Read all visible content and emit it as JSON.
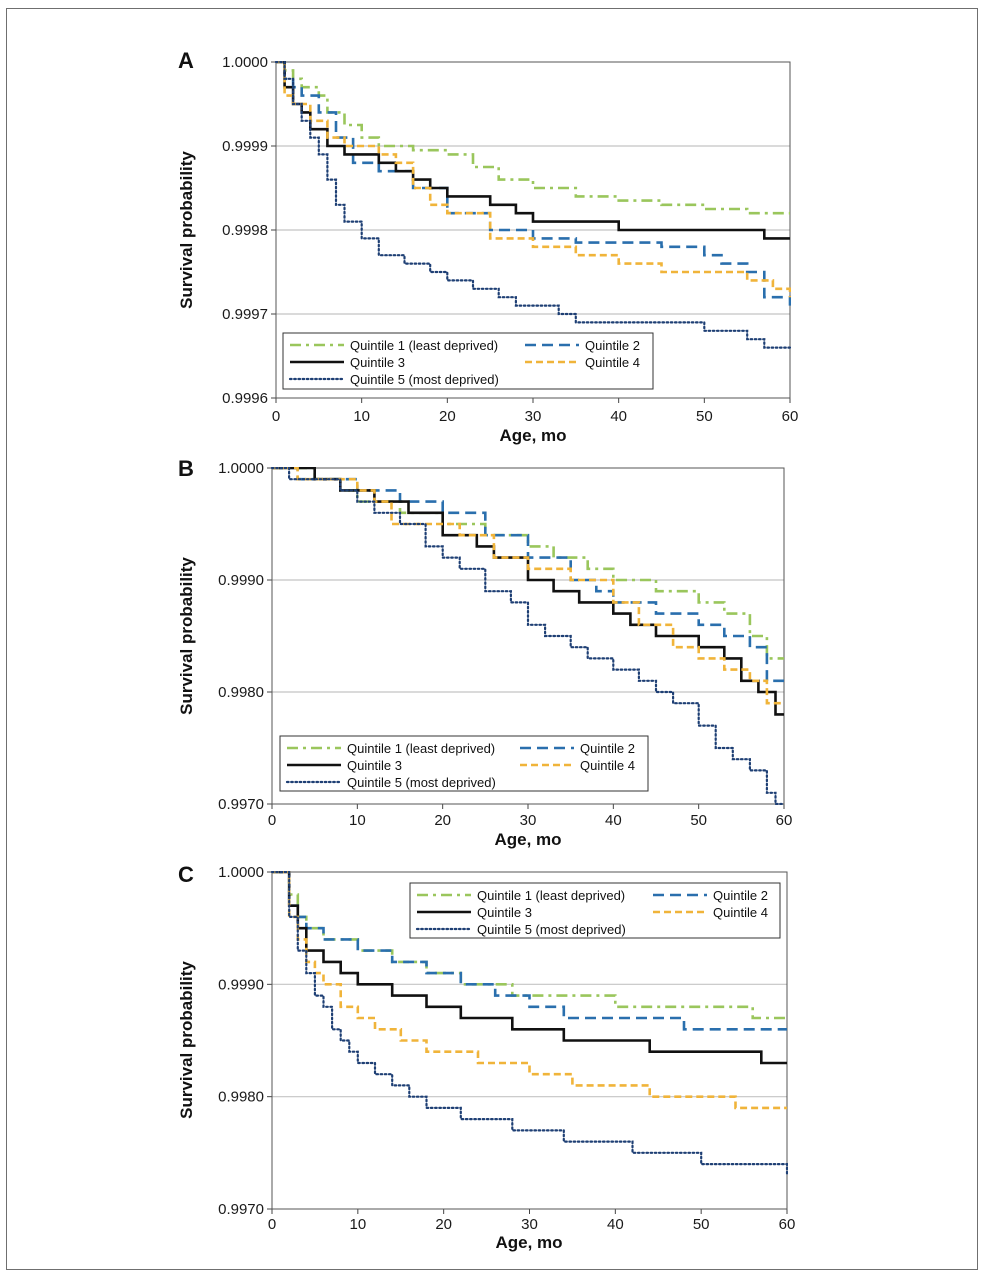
{
  "colors": {
    "q1": "#9ac65c",
    "q2": "#2a6fad",
    "q3": "#111111",
    "q4": "#f0b43a",
    "q5": "#1e3f74",
    "grid": "#c4c4c4",
    "frame": "#6f6f6f"
  },
  "chart_data": [
    {
      "type": "line",
      "panel_label": "A",
      "xlabel": "Age, mo",
      "ylabel": "Survival probability",
      "xlim": [
        0,
        60
      ],
      "ylim": [
        0.9996,
        1.0
      ],
      "xticks": [
        "0",
        "10",
        "20",
        "30",
        "40",
        "50",
        "60"
      ],
      "yticks": [
        "1.0000",
        "0.9999",
        "0.9998",
        "0.9997",
        "0.9996"
      ],
      "grid": "horizontal",
      "legend_position": "bottom-left",
      "series": [
        {
          "name": "Quintile 1 (least deprived)",
          "style": "dashdot",
          "x": [
            0,
            1,
            2,
            3,
            5,
            6,
            8,
            10,
            12,
            16,
            20,
            23,
            26,
            30,
            35,
            40,
            45,
            50,
            55,
            60
          ],
          "y": [
            1.0,
            0.99999,
            0.99998,
            0.99997,
            0.99996,
            0.99994,
            0.999925,
            0.99991,
            0.9999,
            0.999895,
            0.99989,
            0.999875,
            0.99986,
            0.99985,
            0.99984,
            0.999835,
            0.99983,
            0.999825,
            0.99982,
            0.99982
          ]
        },
        {
          "name": "Quintile 2",
          "style": "dashed",
          "x": [
            0,
            1,
            2,
            3,
            5,
            7,
            9,
            12,
            16,
            20,
            25,
            30,
            35,
            40,
            45,
            50,
            52,
            55,
            57,
            60
          ],
          "y": [
            1.0,
            0.99998,
            0.99997,
            0.99996,
            0.99994,
            0.99991,
            0.99988,
            0.99987,
            0.99985,
            0.99982,
            0.9998,
            0.99979,
            0.999785,
            0.999785,
            0.99978,
            0.99977,
            0.99976,
            0.99975,
            0.99972,
            0.99971
          ]
        },
        {
          "name": "Quintile 3",
          "style": "solid",
          "x": [
            0,
            1,
            2,
            3,
            4,
            6,
            8,
            10,
            12,
            14,
            16,
            18,
            20,
            25,
            28,
            30,
            35,
            40,
            45,
            50,
            55,
            57,
            60
          ],
          "y": [
            1.0,
            0.99997,
            0.99995,
            0.99994,
            0.99992,
            0.9999,
            0.99989,
            0.99989,
            0.99988,
            0.99987,
            0.99986,
            0.99985,
            0.99984,
            0.99983,
            0.99982,
            0.99981,
            0.99981,
            0.9998,
            0.9998,
            0.9998,
            0.9998,
            0.99979,
            0.99979
          ]
        },
        {
          "name": "Quintile 4",
          "style": "dashed-short",
          "x": [
            0,
            1,
            2,
            4,
            6,
            8,
            10,
            12,
            14,
            16,
            18,
            20,
            25,
            30,
            35,
            40,
            45,
            50,
            55,
            58,
            60
          ],
          "y": [
            1.0,
            0.99996,
            0.99995,
            0.99993,
            0.99991,
            0.9999,
            0.9999,
            0.99989,
            0.99988,
            0.99985,
            0.99983,
            0.99982,
            0.99979,
            0.99978,
            0.99977,
            0.99976,
            0.99975,
            0.99975,
            0.99974,
            0.99973,
            0.99972
          ]
        },
        {
          "name": "Quintile 5 (most deprived)",
          "style": "dotted",
          "x": [
            0,
            1,
            2,
            3,
            4,
            5,
            6,
            7,
            8,
            10,
            12,
            15,
            18,
            20,
            23,
            26,
            28,
            33,
            35,
            40,
            45,
            50,
            55,
            57,
            60
          ],
          "y": [
            1.0,
            0.99998,
            0.99995,
            0.99993,
            0.99991,
            0.99989,
            0.99986,
            0.99983,
            0.99981,
            0.99979,
            0.99977,
            0.99976,
            0.99975,
            0.99974,
            0.99973,
            0.99972,
            0.99971,
            0.9997,
            0.99969,
            0.99969,
            0.99969,
            0.99968,
            0.99967,
            0.99966,
            0.99966
          ]
        }
      ]
    },
    {
      "type": "line",
      "panel_label": "B",
      "xlabel": "Age, mo",
      "ylabel": "Survival probability",
      "xlim": [
        0,
        60
      ],
      "ylim": [
        0.997,
        1.0
      ],
      "xticks": [
        "0",
        "10",
        "20",
        "30",
        "40",
        "50",
        "60"
      ],
      "yticks": [
        "1.0000",
        "0.9990",
        "0.9980",
        "0.9970"
      ],
      "grid": "horizontal",
      "legend_position": "bottom-left",
      "series": [
        {
          "name": "Quintile 1 (least deprived)",
          "style": "dashdot",
          "x": [
            0,
            5,
            8,
            10,
            15,
            20,
            25,
            30,
            33,
            37,
            40,
            45,
            50,
            53,
            56,
            58,
            60
          ],
          "y": [
            1.0,
            0.9999,
            0.9998,
            0.9997,
            0.9996,
            0.9995,
            0.9994,
            0.9993,
            0.9992,
            0.9991,
            0.999,
            0.9989,
            0.9988,
            0.9987,
            0.9985,
            0.9983,
            0.9983
          ]
        },
        {
          "name": "Quintile 2",
          "style": "dashed",
          "x": [
            0,
            3,
            5,
            10,
            15,
            20,
            25,
            30,
            35,
            38,
            40,
            45,
            50,
            53,
            56,
            58,
            60
          ],
          "y": [
            1.0,
            0.9999,
            0.9999,
            0.9998,
            0.9997,
            0.9996,
            0.9994,
            0.9992,
            0.999,
            0.9989,
            0.9988,
            0.9987,
            0.9986,
            0.9985,
            0.9984,
            0.9981,
            0.9981
          ]
        },
        {
          "name": "Quintile 3",
          "style": "solid",
          "x": [
            0,
            3,
            5,
            8,
            12,
            16,
            20,
            24,
            26,
            30,
            33,
            36,
            40,
            42,
            45,
            50,
            53,
            55,
            57,
            59,
            60
          ],
          "y": [
            1.0,
            1.0,
            0.9999,
            0.9998,
            0.9997,
            0.9996,
            0.9994,
            0.9993,
            0.9992,
            0.999,
            0.9989,
            0.9988,
            0.9987,
            0.9986,
            0.9985,
            0.9984,
            0.9983,
            0.9981,
            0.998,
            0.9978,
            0.9978
          ]
        },
        {
          "name": "Quintile 4",
          "style": "dashed-short",
          "x": [
            0,
            3,
            6,
            10,
            12,
            14,
            18,
            22,
            26,
            30,
            35,
            40,
            43,
            47,
            50,
            53,
            56,
            58,
            60
          ],
          "y": [
            1.0,
            0.9999,
            0.9999,
            0.9998,
            0.9997,
            0.9995,
            0.9995,
            0.9994,
            0.9992,
            0.9991,
            0.999,
            0.9988,
            0.9986,
            0.9984,
            0.9983,
            0.9982,
            0.9981,
            0.9979,
            0.9979
          ]
        },
        {
          "name": "Quintile 5 (most deprived)",
          "style": "dotted",
          "x": [
            0,
            2,
            5,
            8,
            10,
            12,
            15,
            18,
            20,
            22,
            25,
            28,
            30,
            32,
            35,
            37,
            40,
            43,
            45,
            47,
            50,
            52,
            54,
            56,
            58,
            59,
            60
          ],
          "y": [
            1.0,
            0.9999,
            0.9999,
            0.9998,
            0.9997,
            0.9996,
            0.9995,
            0.9993,
            0.9992,
            0.9991,
            0.9989,
            0.9988,
            0.9986,
            0.9985,
            0.9984,
            0.9983,
            0.9982,
            0.9981,
            0.998,
            0.9979,
            0.9977,
            0.9975,
            0.9974,
            0.9973,
            0.9971,
            0.997,
            0.997
          ]
        }
      ]
    },
    {
      "type": "line",
      "panel_label": "C",
      "xlabel": "Age, mo",
      "ylabel": "Survival probability",
      "xlim": [
        0,
        60
      ],
      "ylim": [
        0.997,
        1.0
      ],
      "xticks": [
        "0",
        "10",
        "20",
        "30",
        "40",
        "50",
        "60"
      ],
      "yticks": [
        "1.0000",
        "0.9990",
        "0.9980",
        "0.9970"
      ],
      "grid": "horizontal",
      "legend_position": "top-right",
      "series": [
        {
          "name": "Quintile 1 (least deprived)",
          "style": "dashdot",
          "x": [
            0,
            1,
            2,
            3,
            4,
            6,
            10,
            14,
            18,
            22,
            28,
            34,
            40,
            50,
            56,
            60
          ],
          "y": [
            1.0,
            1.0,
            0.9998,
            0.9996,
            0.9995,
            0.9994,
            0.9993,
            0.9992,
            0.9991,
            0.999,
            0.9989,
            0.9989,
            0.9988,
            0.9988,
            0.9987,
            0.9987
          ]
        },
        {
          "name": "Quintile 2",
          "style": "dashed",
          "x": [
            0,
            1,
            2,
            3,
            4,
            6,
            10,
            14,
            18,
            22,
            26,
            30,
            34,
            40,
            48,
            55,
            60
          ],
          "y": [
            1.0,
            1.0,
            0.9997,
            0.9996,
            0.9995,
            0.9994,
            0.9993,
            0.9992,
            0.9991,
            0.999,
            0.9989,
            0.9988,
            0.9987,
            0.9987,
            0.9986,
            0.9986,
            0.9986
          ]
        },
        {
          "name": "Quintile 3",
          "style": "solid",
          "x": [
            0,
            1,
            2,
            3,
            4,
            6,
            8,
            10,
            12,
            14,
            16,
            18,
            22,
            28,
            34,
            44,
            57,
            60
          ],
          "y": [
            1.0,
            1.0,
            0.9997,
            0.9995,
            0.9993,
            0.9992,
            0.9991,
            0.999,
            0.999,
            0.9989,
            0.9989,
            0.9988,
            0.9987,
            0.9986,
            0.9985,
            0.9984,
            0.9983,
            0.9983
          ]
        },
        {
          "name": "Quintile 4",
          "style": "dashed-short",
          "x": [
            0,
            1,
            2,
            3,
            4,
            5,
            6,
            8,
            10,
            12,
            15,
            18,
            21,
            24,
            27,
            30,
            35,
            40,
            44,
            50,
            54,
            60
          ],
          "y": [
            1.0,
            1.0,
            0.9996,
            0.9994,
            0.9992,
            0.9991,
            0.999,
            0.9988,
            0.9987,
            0.9986,
            0.9985,
            0.9984,
            0.9984,
            0.9983,
            0.9983,
            0.9982,
            0.9981,
            0.9981,
            0.998,
            0.998,
            0.9979,
            0.9979
          ]
        },
        {
          "name": "Quintile 5 (most deprived)",
          "style": "dotted",
          "x": [
            0,
            1,
            2,
            3,
            4,
            5,
            6,
            7,
            8,
            9,
            10,
            12,
            14,
            16,
            18,
            20,
            22,
            25,
            28,
            30,
            34,
            38,
            42,
            46,
            50,
            55,
            59,
            60
          ],
          "y": [
            1.0,
            1.0,
            0.9996,
            0.9993,
            0.9991,
            0.9989,
            0.9988,
            0.9986,
            0.9985,
            0.9984,
            0.9983,
            0.9982,
            0.9981,
            0.998,
            0.9979,
            0.9979,
            0.9978,
            0.9978,
            0.9977,
            0.9977,
            0.9976,
            0.9976,
            0.9975,
            0.9975,
            0.9974,
            0.9974,
            0.9974,
            0.9973
          ]
        }
      ]
    }
  ]
}
